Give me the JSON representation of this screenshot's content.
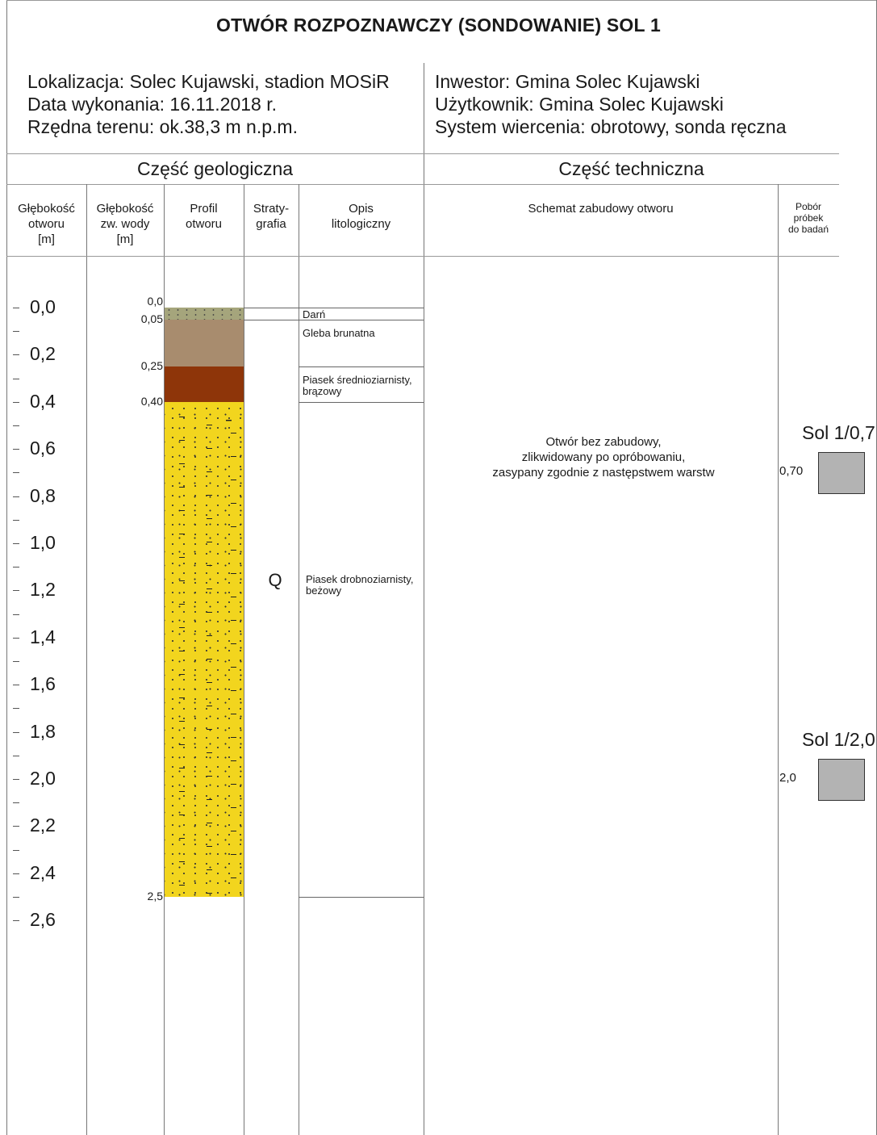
{
  "title": "OTWÓR ROZPOZNAWCZY (SONDOWANIE) SOL 1",
  "info_left": [
    "Lokalizacja: Solec Kujawski, stadion MOSiR",
    "Data wykonania:  16.11.2018 r.",
    "Rzędna terenu: ok.38,3 m n.p.m."
  ],
  "info_right": [
    "Inwestor: Gmina Solec Kujawski",
    "Użytkownik: Gmina Solec Kujawski",
    "System wiercenia: obrotowy, sonda ręczna"
  ],
  "section_geo": "Część geologiczna",
  "section_tech": "Część techniczna",
  "headers": {
    "depth": [
      "Głębokość",
      "otworu",
      "[m]"
    ],
    "water": [
      "Głębokość",
      "zw. wody",
      "[m]"
    ],
    "profile": [
      "Profil",
      "otworu"
    ],
    "strat": [
      "Straty-",
      "grafia"
    ],
    "desc": [
      "Opis",
      "litologiczny"
    ],
    "scheme": "Schemat zabudowy otworu",
    "samples": [
      "Pobór",
      "próbek",
      "do badań"
    ]
  },
  "depth_scale": [
    "0,0",
    "0,2",
    "0,4",
    "0,6",
    "0,8",
    "1,0",
    "1,2",
    "1,4",
    "1,6",
    "1,8",
    "2,0",
    "2,2",
    "2,4",
    "2,6"
  ],
  "layers": [
    {
      "top": 0.0,
      "bottom": 0.05,
      "color": "#a5a57c",
      "pattern": "soil",
      "description": "Darń"
    },
    {
      "top": 0.05,
      "bottom": 0.25,
      "color": "#a88c6e",
      "pattern": "none",
      "description": "Gleba brunatna"
    },
    {
      "top": 0.25,
      "bottom": 0.4,
      "color": "#8e3509",
      "pattern": "none",
      "description": "Piasek średnioziarnisty, brązowy"
    },
    {
      "top": 0.4,
      "bottom": 2.5,
      "color": "#f2d51e",
      "pattern": "sand",
      "description": "Piasek drobnoziarnisty, beżowy"
    }
  ],
  "boundary_labels": [
    "0,0",
    "0,05",
    "0,25",
    "0,40",
    "2,5"
  ],
  "stratigraphy": "Q",
  "scheme_text": [
    "Otwór bez zabudowy,",
    "zlikwidowany po opróbowaniu,",
    "zasypany zgodnie z następstwem warstw"
  ],
  "samples": [
    {
      "name": "Sol 1/0,7",
      "depth_label": "0,70",
      "depth": 0.7
    },
    {
      "name": "Sol 1/2,0",
      "depth_label": "2,0",
      "depth": 2.0
    }
  ]
}
